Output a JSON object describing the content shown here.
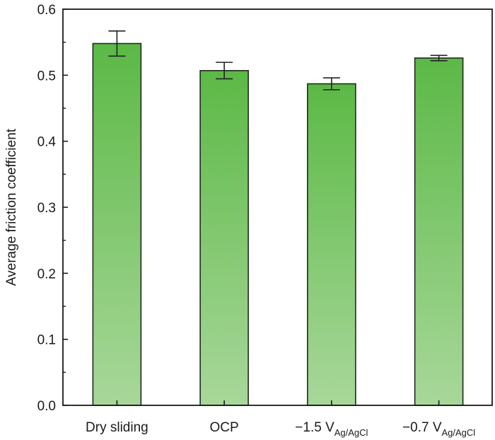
{
  "chart_data": {
    "type": "bar",
    "title": "",
    "xlabel": "",
    "ylabel": "Average friction coefficient",
    "ylim": [
      0.0,
      0.6
    ],
    "yticks": [
      "0.0",
      "0.1",
      "0.2",
      "0.3",
      "0.4",
      "0.5",
      "0.6"
    ],
    "grid": false,
    "legend": "none",
    "categories": [
      {
        "main": "Dry sliding",
        "sub": ""
      },
      {
        "main": "OCP",
        "sub": ""
      },
      {
        "main": "−1.5 V",
        "sub": "Ag/AgCl"
      },
      {
        "main": "−0.7 V",
        "sub": "Ag/AgCl"
      }
    ],
    "values": [
      0.548,
      0.507,
      0.487,
      0.526
    ],
    "errors": [
      0.019,
      0.0125,
      0.009,
      0.004
    ],
    "colors": {
      "bar_top": "#5cb946",
      "bar_bottom": "#a8d79a",
      "bar_edge": "#1f2a1c",
      "axis": "#1a1a1a"
    }
  }
}
